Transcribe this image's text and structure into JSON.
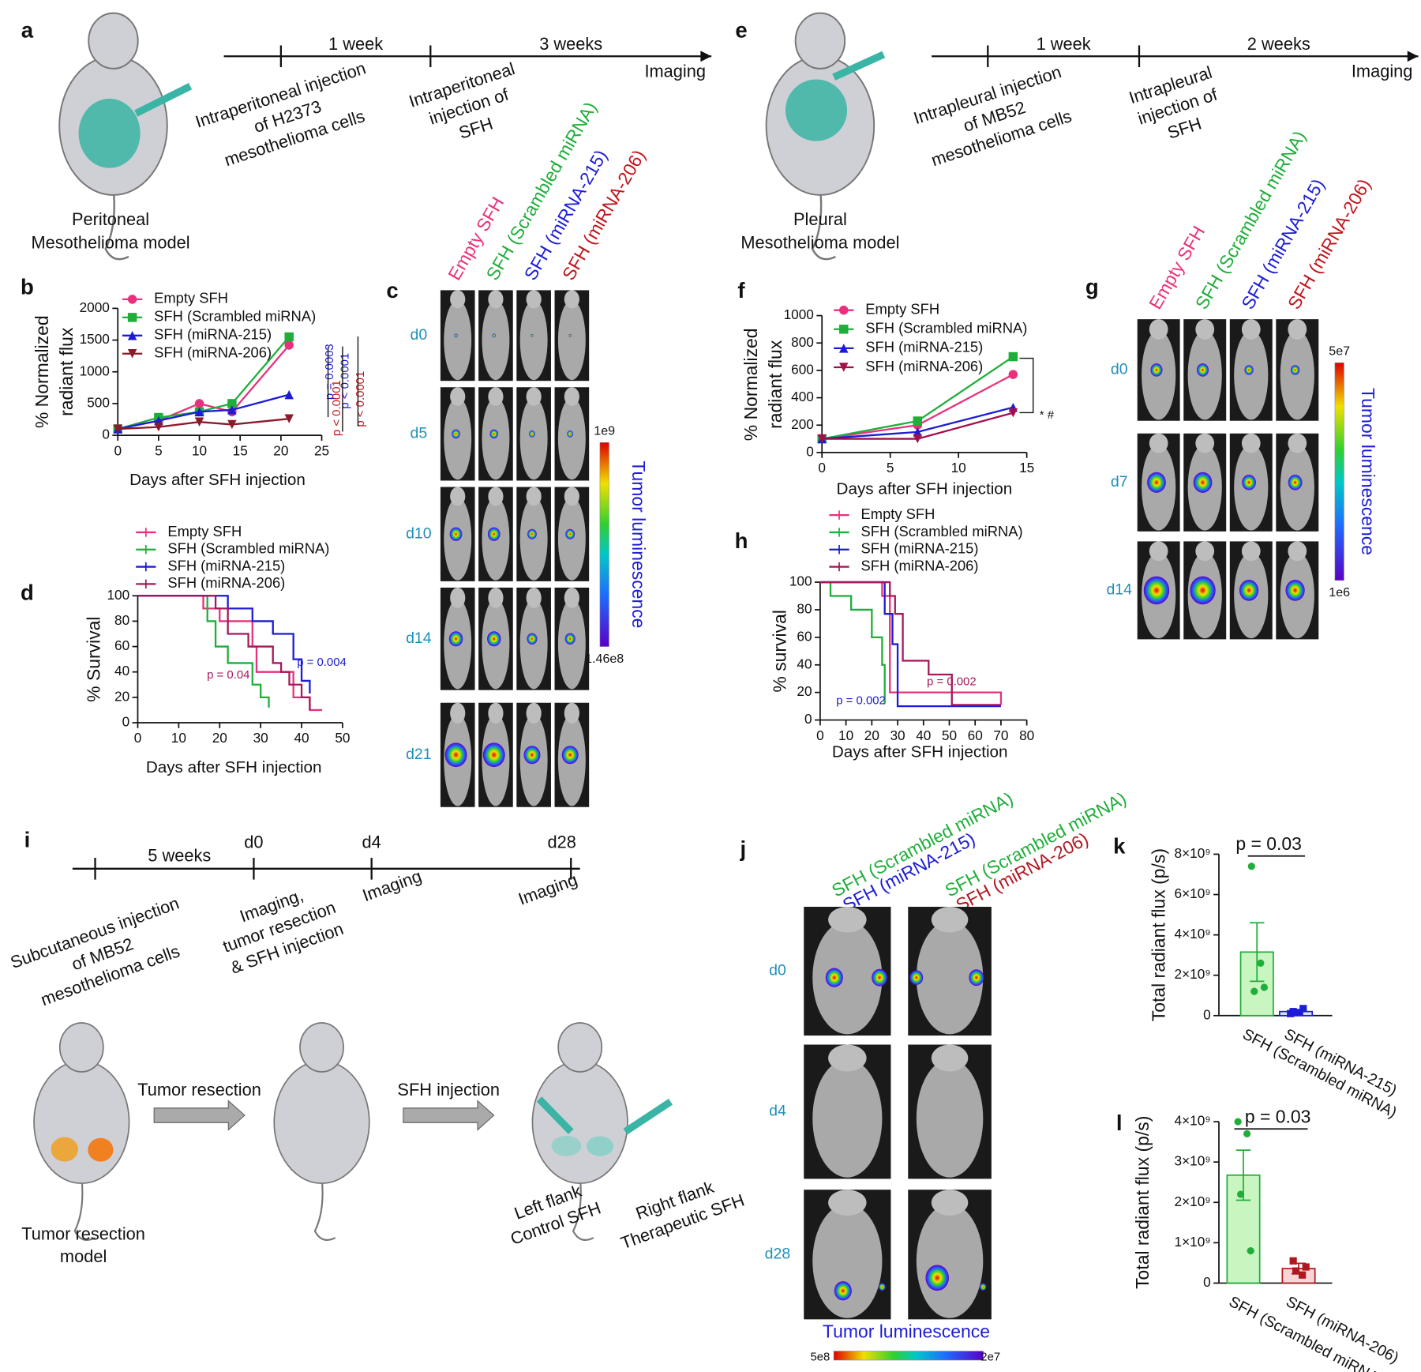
{
  "panel_labels": [
    "a",
    "b",
    "c",
    "d",
    "e",
    "f",
    "g",
    "h",
    "i",
    "j",
    "k",
    "l"
  ],
  "panel_a": {
    "timeline": [
      "1 week",
      "3 weeks"
    ],
    "end": "Imaging",
    "step1": [
      "Intraperitoneal injection",
      "of H2373",
      "mesothelioma cells"
    ],
    "step2": [
      "Intraperitoneal",
      "injection of",
      "SFH"
    ],
    "model": [
      "Peritoneal",
      "Mesothelioma model"
    ]
  },
  "panel_e": {
    "timeline": [
      "1 week",
      "2 weeks"
    ],
    "end": "Imaging",
    "step1": [
      "Intrapleural injection",
      "of MB52",
      "mesothelioma cells"
    ],
    "step2": [
      "Intrapleural",
      "injection of",
      "SFH"
    ],
    "model": [
      "Pleural",
      "Mesothelioma model"
    ]
  },
  "panel_c": {
    "columns": [
      "Empty SFH",
      "SFH (Scrambled miRNA)",
      "SFH (miRNA-215)",
      "SFH (miRNA-206)"
    ],
    "days": [
      "d0",
      "d5",
      "d10",
      "d14",
      "d21"
    ],
    "colorbar": {
      "max": "1e9",
      "min": "1.46e8",
      "label": "Tumor luminescence"
    }
  },
  "panel_g": {
    "columns": [
      "Empty SFH",
      "SFH (Scrambled miRNA)",
      "SFH (miRNA-215)",
      "SFH (miRNA-206)"
    ],
    "days": [
      "d0",
      "d7",
      "d14"
    ],
    "colorbar": {
      "max": "5e7",
      "min": "1e6",
      "label": "Tumor luminescence"
    }
  },
  "panel_i": {
    "timeline": [
      "5 weeks"
    ],
    "points": [
      "d0",
      "d4",
      "d28"
    ],
    "steps": [
      [
        "Subcutaneous injection",
        "of MB52",
        "mesothelioma cells"
      ],
      [
        "Imaging,",
        "tumor resection",
        "& SFH injection"
      ],
      [
        "Imaging"
      ],
      [
        "Imaging"
      ]
    ],
    "arrows": [
      "Tumor resection",
      "SFH injection"
    ],
    "model": [
      "Tumor resection",
      "model"
    ],
    "left": [
      "Left flank",
      "Control SFH"
    ],
    "right": [
      "Right flank",
      "Therapeutic SFH"
    ]
  },
  "panel_j": {
    "columns": [
      [
        "SFH (Scrambled miRNA)",
        "SFH (miRNA-215)"
      ],
      [
        "SFH (Scrambled miRNA)",
        "SFH (miRNA-206)"
      ]
    ],
    "days": [
      "d0",
      "d4",
      "d28"
    ],
    "colorbar": {
      "label": "Tumor luminescence",
      "left": "5e8",
      "right": "2e7"
    }
  },
  "chart_data": [
    {
      "type": "line",
      "x_label": "Days after SFH injection",
      "y_label": [
        "% Normalized",
        "radiant flux"
      ],
      "x": [
        0,
        5,
        10,
        14,
        21
      ],
      "xlim": [
        0,
        25
      ],
      "xticks": [
        0,
        5,
        10,
        15,
        20,
        25
      ],
      "ylim": [
        0,
        2000
      ],
      "yticks": [
        0,
        500,
        1000,
        1500,
        2000
      ],
      "series": [
        {
          "name": "Empty SFH",
          "color": "#e8317c",
          "marker": "circle",
          "values": [
            100,
            230,
            500,
            370,
            1420
          ]
        },
        {
          "name": "SFH (Scrambled miRNA)",
          "color": "#1fae3a",
          "marker": "square",
          "values": [
            100,
            280,
            370,
            500,
            1550
          ]
        },
        {
          "name": "SFH (miRNA-215)",
          "color": "#1c1cd6",
          "marker": "triangle",
          "values": [
            100,
            230,
            370,
            400,
            640
          ]
        },
        {
          "name": "SFH (miRNA-206)",
          "color": "#8b1a2a",
          "marker": "triangle-down",
          "values": [
            100,
            130,
            210,
            170,
            260
          ]
        }
      ],
      "annotations": [
        "p = 0.0003",
        "p < 0.0001",
        "p < 0.0001",
        "p < 0.0001"
      ]
    },
    {
      "type": "step",
      "x_label": "Days after SFH injection",
      "y_label": [
        "% Survival"
      ],
      "xlim": [
        0,
        50
      ],
      "xticks": [
        0,
        10,
        20,
        30,
        40,
        50
      ],
      "ylim": [
        0,
        100
      ],
      "yticks": [
        0,
        20,
        40,
        60,
        80,
        100
      ],
      "series": [
        {
          "name": "Empty SFH",
          "color": "#e8317c",
          "x": [
            0,
            16,
            20,
            28,
            29,
            38,
            42,
            45
          ],
          "values": [
            100,
            90,
            80,
            60,
            40,
            20,
            10,
            10
          ]
        },
        {
          "name": "SFH (Scrambled miRNA)",
          "color": "#1fae3a",
          "x": [
            0,
            17,
            19,
            22,
            28,
            30,
            32
          ],
          "values": [
            100,
            80,
            60,
            47,
            30,
            20,
            12
          ]
        },
        {
          "name": "SFH (miRNA-215)",
          "color": "#1c1cd6",
          "x": [
            0,
            22,
            28,
            33,
            38,
            40,
            42
          ],
          "values": [
            100,
            90,
            80,
            70,
            50,
            33,
            23
          ]
        },
        {
          "name": "SFH (miRNA-206)",
          "color": "#a5195a",
          "x": [
            0,
            19,
            22,
            27,
            33,
            35,
            37,
            40,
            42
          ],
          "values": [
            100,
            90,
            70,
            60,
            47,
            40,
            30,
            20,
            10
          ]
        }
      ],
      "annotations": [
        "p = 0.04",
        "p = 0.004"
      ]
    },
    {
      "type": "line",
      "x_label": "Days after SFH injection",
      "y_label": [
        "% Normalized",
        "radiant flux"
      ],
      "x": [
        0,
        7,
        14
      ],
      "xlim": [
        0,
        15
      ],
      "xticks": [
        0,
        5,
        10,
        15
      ],
      "ylim": [
        0,
        1000
      ],
      "yticks": [
        0,
        200,
        400,
        600,
        800,
        1000
      ],
      "series": [
        {
          "name": "Empty SFH",
          "color": "#e8317c",
          "marker": "circle",
          "values": [
            100,
            200,
            570
          ]
        },
        {
          "name": "SFH (Scrambled miRNA)",
          "color": "#1fae3a",
          "marker": "square",
          "values": [
            100,
            230,
            700
          ]
        },
        {
          "name": "SFH (miRNA-215)",
          "color": "#1c1cd6",
          "marker": "triangle",
          "values": [
            100,
            150,
            330
          ]
        },
        {
          "name": "SFH (miRNA-206)",
          "color": "#a0104a",
          "marker": "triangle-down",
          "values": [
            100,
            100,
            290
          ]
        }
      ],
      "annotations": [
        "* #"
      ]
    },
    {
      "type": "step",
      "x_label": "Days after SFH injection",
      "y_label": [
        "% survival"
      ],
      "xlim": [
        0,
        80
      ],
      "xticks": [
        0,
        10,
        20,
        30,
        40,
        50,
        60,
        70,
        80
      ],
      "ylim": [
        0,
        100
      ],
      "yticks": [
        0,
        20,
        40,
        60,
        80,
        100
      ],
      "series": [
        {
          "name": "Empty SFH",
          "color": "#e8317c",
          "x": [
            0,
            24,
            27,
            70
          ],
          "values": [
            100,
            90,
            20,
            11
          ]
        },
        {
          "name": "SFH (Scrambled miRNA)",
          "color": "#1fae3a",
          "x": [
            0,
            4,
            12,
            20,
            24,
            25
          ],
          "values": [
            100,
            90,
            80,
            60,
            40,
            12
          ]
        },
        {
          "name": "SFH (miRNA-215)",
          "color": "#1c1cd6",
          "x": [
            0,
            25,
            28,
            30,
            70
          ],
          "values": [
            100,
            77,
            55,
            10,
            10
          ]
        },
        {
          "name": "SFH (miRNA-206)",
          "color": "#a5195a",
          "x": [
            0,
            27,
            29,
            32,
            42,
            51,
            70
          ],
          "values": [
            100,
            90,
            77,
            43,
            33,
            11,
            11
          ]
        }
      ],
      "annotations": [
        "p = 0.002",
        "p = 0.002"
      ]
    },
    {
      "type": "bar",
      "y_label": [
        "Total radiant flux (p/s)"
      ],
      "categories": [
        "SFH (Scrambled miRNA)",
        "SFH (miRNA-215)"
      ],
      "values": [
        3150000000,
        200000000
      ],
      "errors": [
        1450000000,
        50000000
      ],
      "points": [
        [
          7400000000,
          2600000000,
          1200000000,
          1400000000
        ],
        [
          100000000,
          150000000,
          200000000,
          350000000
        ]
      ],
      "colors": [
        "#1fae3a",
        "#1c1cd6"
      ],
      "fills": [
        "#c8f5c0",
        "#dfe3fb"
      ],
      "ylim": [
        0,
        8000000000
      ],
      "yticks": [
        0,
        {
          "value": 2000000000,
          "label": "2×10⁹"
        },
        {
          "value": 4000000000,
          "label": "4×10⁹"
        },
        {
          "value": 6000000000,
          "label": "6×10⁹"
        },
        {
          "value": 8000000000,
          "label": "8×10⁹"
        }
      ],
      "annotations": [
        "p = 0.03"
      ]
    },
    {
      "type": "bar",
      "y_label": [
        "Total radiant flux (p/s)"
      ],
      "categories": [
        "SFH (Scrambled miRNA)",
        "SFH (miRNA-206)"
      ],
      "values": [
        2675000000,
        360000000
      ],
      "errors": [
        620000000,
        130000000
      ],
      "points": [
        [
          4000000000,
          3700000000,
          2200000000,
          800000000
        ],
        [
          550000000,
          200000000,
          300000000,
          400000000
        ]
      ],
      "colors": [
        "#1fae3a",
        "#b01820"
      ],
      "fills": [
        "#c8f5c0",
        "#f8d6d6"
      ],
      "ylim": [
        0,
        4000000000
      ],
      "yticks": [
        0,
        {
          "value": 1000000000,
          "label": "1×10⁹"
        },
        {
          "value": 2000000000,
          "label": "2×10⁹"
        },
        {
          "value": 3000000000,
          "label": "3×10⁹"
        },
        {
          "value": 4000000000,
          "label": "4×10⁹"
        }
      ],
      "annotations": [
        "p = 0.03"
      ]
    }
  ]
}
